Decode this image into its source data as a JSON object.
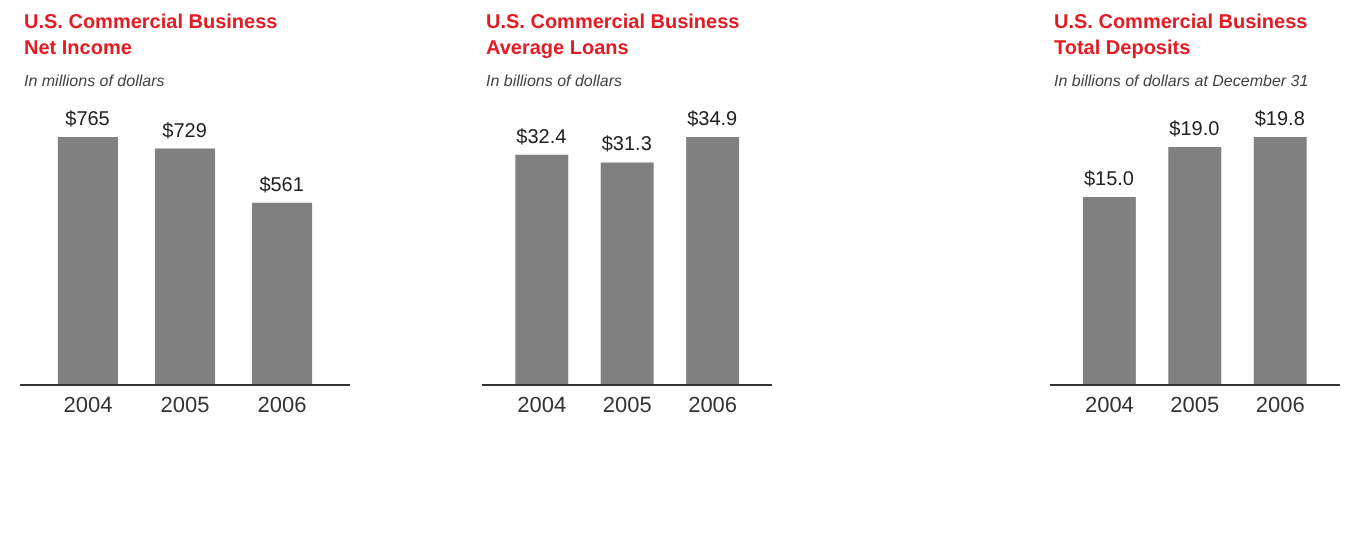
{
  "chart_data": [
    {
      "type": "bar",
      "title": "U.S. Commercial Business\nNet Income",
      "subtitle": "In millions of dollars",
      "categories": [
        "2004",
        "2005",
        "2006"
      ],
      "values": [
        765,
        729,
        561
      ],
      "value_labels": [
        "$765",
        "$729",
        "$561"
      ],
      "color": "#808080"
    },
    {
      "type": "bar",
      "title": "U.S. Commercial Business\nAverage Loans",
      "subtitle": "In billions of dollars",
      "categories": [
        "2004",
        "2005",
        "2006"
      ],
      "values": [
        32.4,
        31.3,
        34.9
      ],
      "value_labels": [
        "$32.4",
        "$31.3",
        "$34.9"
      ],
      "color": "#808080"
    },
    {
      "type": "bar",
      "title": "U.S. Commercial Business\nTotal Deposits",
      "subtitle": "In billions of dollars at December 31",
      "categories": [
        "2004",
        "2005",
        "2006"
      ],
      "values": [
        15.0,
        19.0,
        19.8
      ],
      "value_labels": [
        "$15.0",
        "$19.0",
        "$19.8"
      ],
      "color": "#808080"
    }
  ]
}
